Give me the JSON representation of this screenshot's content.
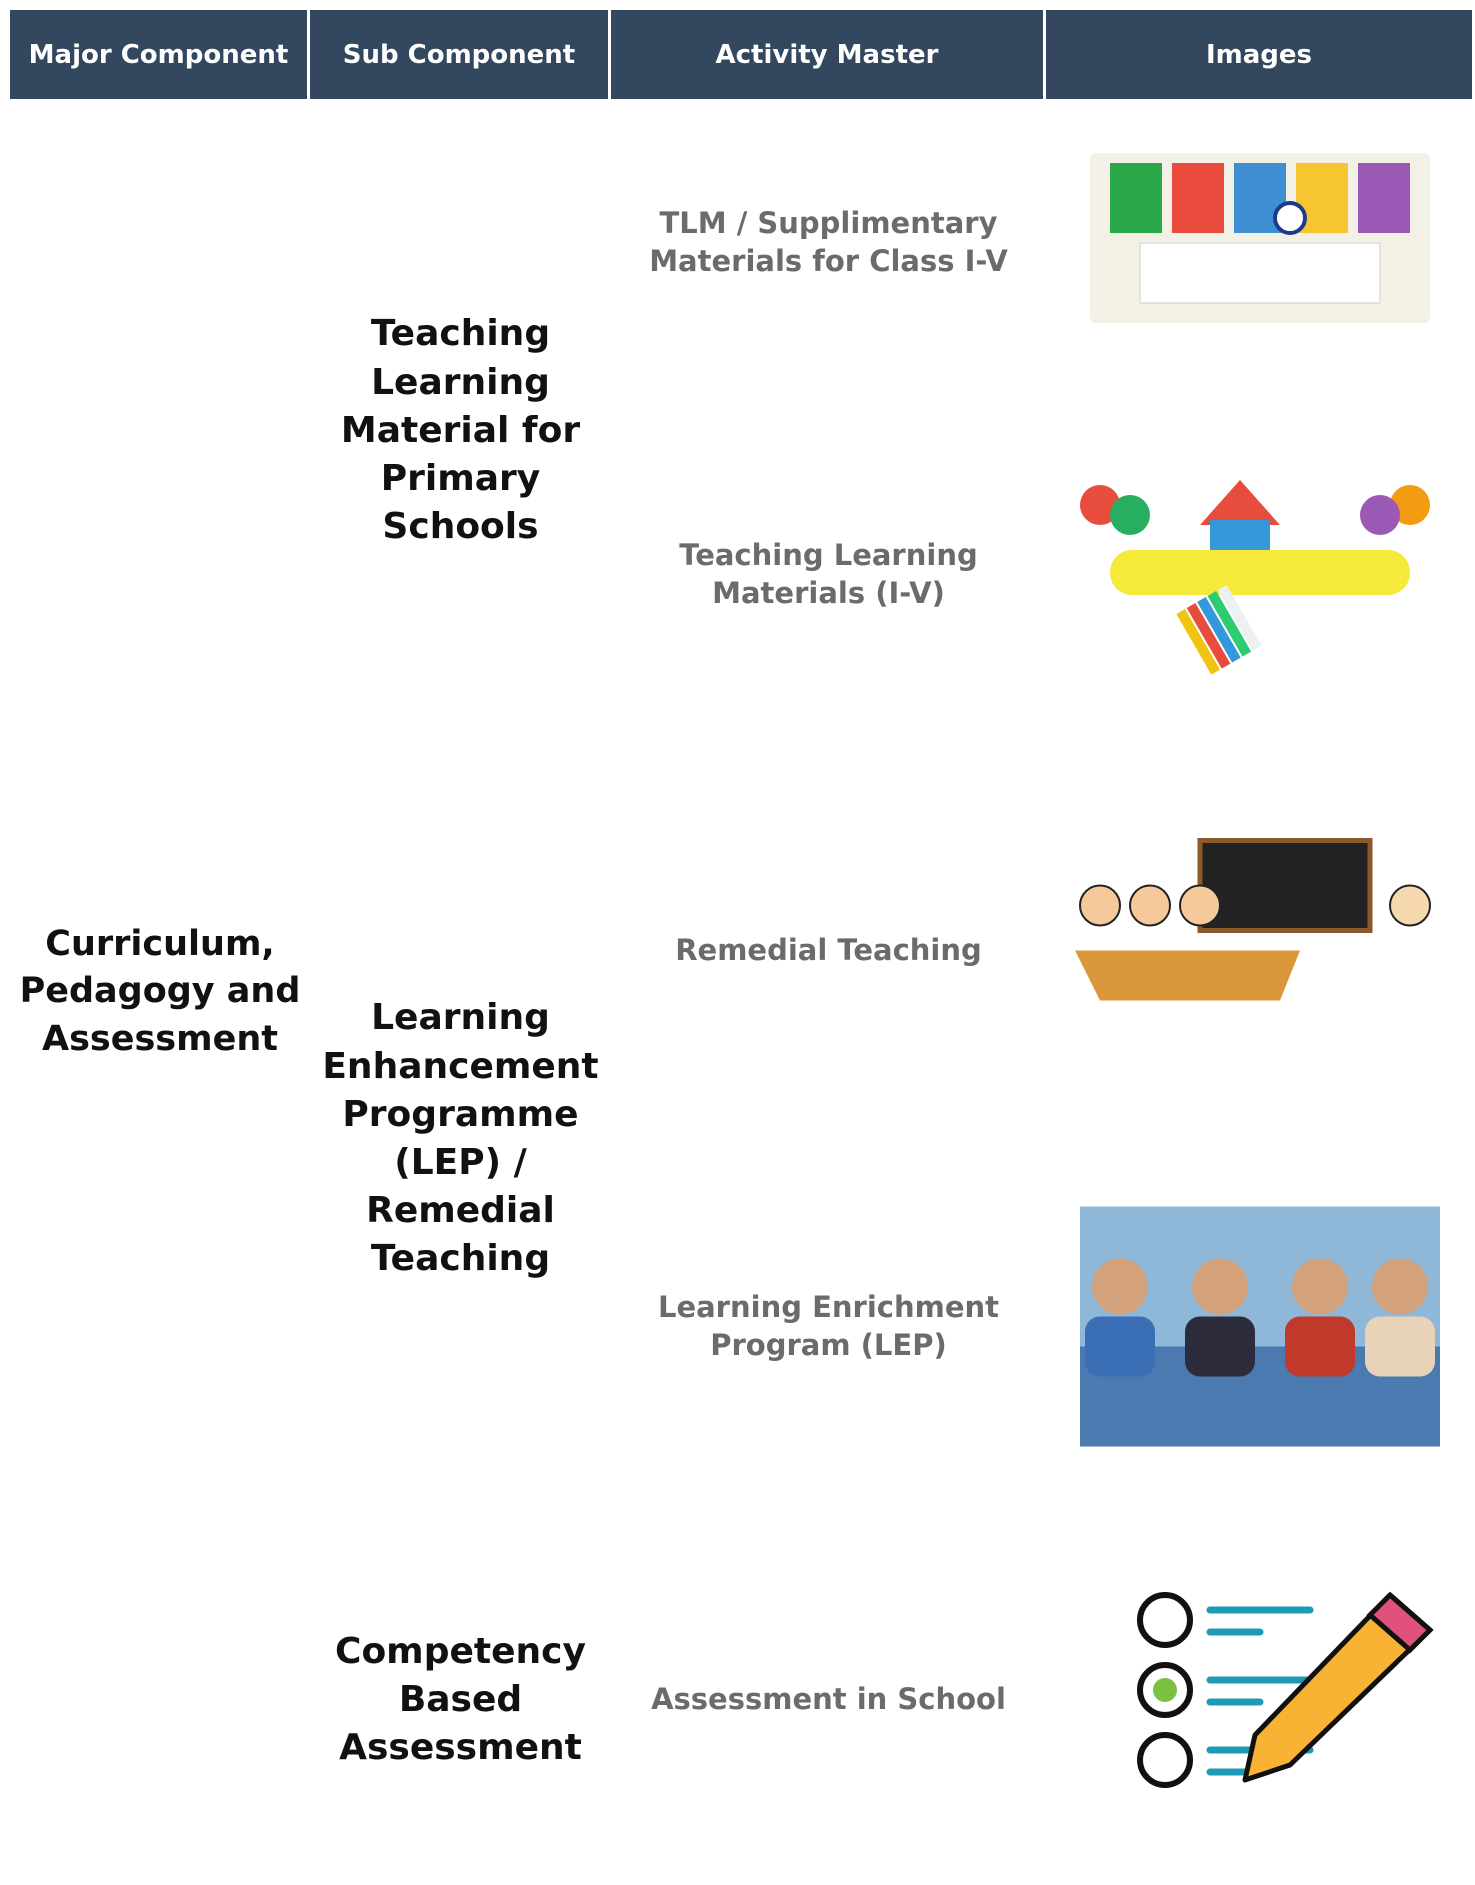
{
  "table": {
    "header": [
      "Major Component",
      "Sub Component",
      "Activity Master",
      "Images"
    ],
    "major": "Curriculum, Pedagogy and Assessment",
    "groups": [
      {
        "sub": "Teaching Learning Material for Primary Schools",
        "activities": [
          "TLM / Supplimentary Materials for Class I-V",
          "Teaching Learning Materials (I-V)"
        ]
      },
      {
        "sub": "Learning Enhancement Programme (LEP) / Remedial Teaching",
        "activities": [
          "Remedial Teaching",
          "Learning Enrichment Program (LEP)"
        ]
      },
      {
        "sub": "Competency Based Assessment",
        "activities": [
          "Assessment in School"
        ]
      }
    ]
  }
}
